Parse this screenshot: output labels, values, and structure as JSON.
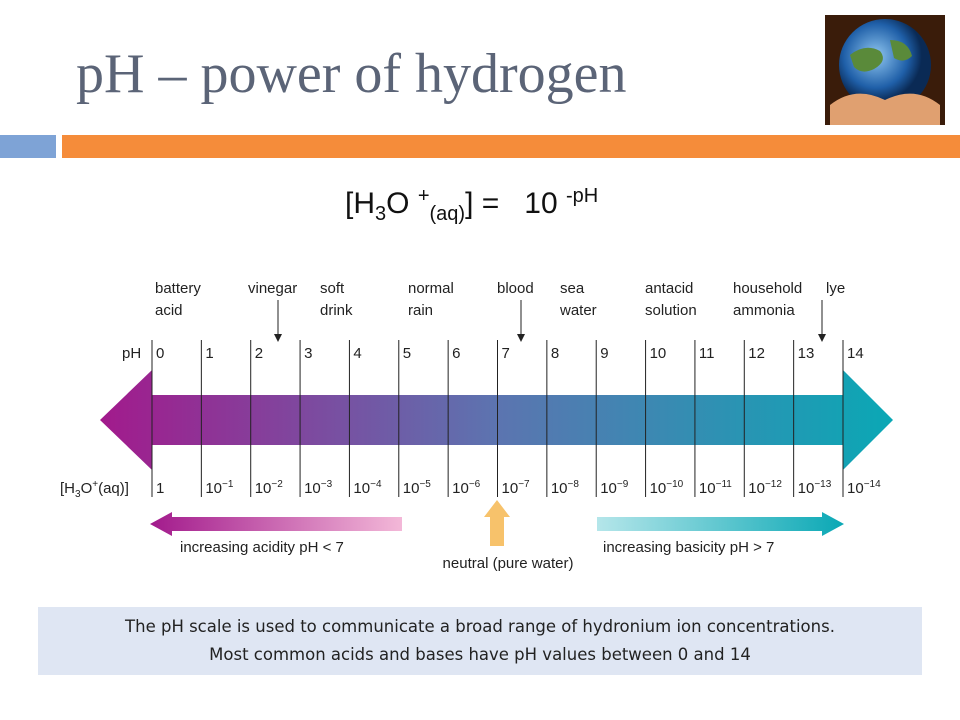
{
  "title": "pH – power of hydrogen",
  "formula": {
    "open": "[H",
    "sub1": "3",
    "mid": "O",
    "sup": "+",
    "sub2": "(aq)",
    "close": "] =",
    "base": "10",
    "exp": "-pH"
  },
  "scale": {
    "axis_label": "pH",
    "ph_values": [
      0,
      1,
      2,
      3,
      4,
      5,
      6,
      7,
      8,
      9,
      10,
      11,
      12,
      13,
      14
    ],
    "concentration_label": {
      "open": "[H",
      "sub": "3",
      "mid": "O",
      "sup": "+",
      "tail": "(aq)]"
    },
    "concentrations": [
      {
        "base": "1"
      },
      {
        "base": "10",
        "exp": "−1"
      },
      {
        "base": "10",
        "exp": "−2"
      },
      {
        "base": "10",
        "exp": "−3"
      },
      {
        "base": "10",
        "exp": "−4"
      },
      {
        "base": "10",
        "exp": "−5"
      },
      {
        "base": "10",
        "exp": "−6"
      },
      {
        "base": "10",
        "exp": "−7"
      },
      {
        "base": "10",
        "exp": "−8"
      },
      {
        "base": "10",
        "exp": "−9"
      },
      {
        "base": "10",
        "exp": "−10"
      },
      {
        "base": "10",
        "exp": "−11"
      },
      {
        "base": "10",
        "exp": "−12"
      },
      {
        "base": "10",
        "exp": "−13"
      },
      {
        "base": "10",
        "exp": "−14"
      }
    ]
  },
  "substances": [
    {
      "lines": [
        "battery",
        "acid"
      ]
    },
    {
      "lines": [
        "vinegar"
      ]
    },
    {
      "lines": [
        "soft",
        "drink"
      ]
    },
    {
      "lines": [
        "normal",
        "rain"
      ]
    },
    {
      "lines": [
        "blood"
      ]
    },
    {
      "lines": [
        "sea",
        "water"
      ]
    },
    {
      "lines": [
        "antacid",
        "solution"
      ]
    },
    {
      "lines": [
        "household",
        "ammonia"
      ]
    },
    {
      "lines": [
        "lye"
      ]
    }
  ],
  "acidity": "increasing acidity pH < 7",
  "neutral": "neutral (pure water)",
  "basicity": "increasing basicity pH > 7",
  "caption": [
    "The pH scale is used to communicate a broad range of hydronium ion concentrations.",
    "Most common acids and bases have pH values between 0 and 14"
  ]
}
